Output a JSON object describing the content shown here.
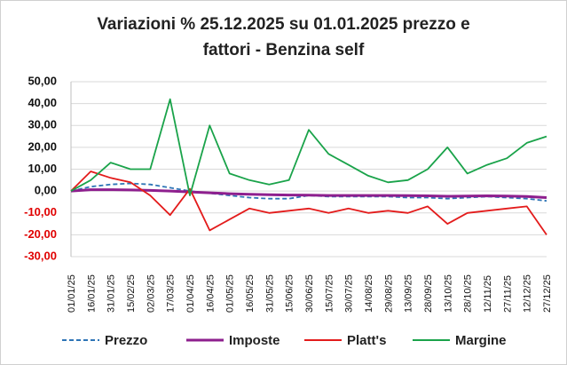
{
  "chart_data": {
    "type": "line",
    "title_line1": "Variazioni % 25.12.2025 su 01.01.2025 prezzo e",
    "title_line2": "fattori - Benzina self",
    "ylim": [
      -30,
      50
    ],
    "yticks": [
      "50,00",
      "40,00",
      "30,00",
      "20,00",
      "10,00",
      "0,00",
      "-10,00",
      "-20,00",
      "-30,00"
    ],
    "ytick_values": [
      50,
      40,
      30,
      20,
      10,
      0,
      -10,
      -20,
      -30
    ],
    "negative_tick_color": "#e00000",
    "positive_tick_color": "#111111",
    "grid": "horizontal",
    "legend_position": "bottom",
    "x": [
      "01/01/25",
      "16/01/25",
      "31/01/25",
      "15/02/25",
      "02/03/25",
      "17/03/25",
      "01/04/25",
      "16/04/25",
      "01/05/25",
      "16/05/25",
      "31/05/25",
      "15/06/25",
      "30/06/25",
      "15/07/25",
      "30/07/25",
      "14/08/25",
      "29/08/25",
      "13/09/25",
      "28/09/25",
      "13/10/25",
      "28/10/25",
      "12/11/25",
      "27/11/25",
      "12/12/25",
      "27/12/25"
    ],
    "series": [
      {
        "name": "Prezzo",
        "color": "#2e75b6",
        "style": "dashed",
        "values": [
          0,
          2,
          3,
          3.5,
          3,
          1.5,
          0,
          -1,
          -2,
          -3,
          -3.5,
          -3.5,
          -2,
          -2.5,
          -2.5,
          -2.5,
          -2.5,
          -3,
          -3,
          -3.5,
          -3,
          -2.5,
          -3,
          -3.5,
          -4.5
        ]
      },
      {
        "name": "Imposte",
        "color": "#8e1f8e",
        "style": "solid",
        "values": [
          0,
          0.6,
          0.6,
          0.5,
          0.3,
          0,
          -0.4,
          -0.8,
          -1.2,
          -1.5,
          -1.7,
          -1.8,
          -1.9,
          -2,
          -2,
          -2,
          -2,
          -2.1,
          -2.2,
          -2.4,
          -2.3,
          -2.2,
          -2.3,
          -2.5,
          -3
        ]
      },
      {
        "name": "Platt's",
        "color": "#e31b1b",
        "style": "solid",
        "values": [
          0,
          9,
          6,
          4,
          -2,
          -11,
          1,
          -18,
          -13,
          -8,
          -10,
          -9,
          -8,
          -10,
          -8,
          -10,
          -9,
          -10,
          -7,
          -15,
          -10,
          -9,
          -8,
          -7,
          -20
        ]
      },
      {
        "name": "Margine",
        "color": "#1aa34a",
        "style": "solid",
        "values": [
          0,
          5,
          13,
          10,
          10,
          42,
          -2,
          30,
          8,
          5,
          3,
          5,
          28,
          17,
          12,
          7,
          4,
          5,
          10,
          20,
          8,
          12,
          15,
          22,
          25
        ]
      }
    ]
  }
}
